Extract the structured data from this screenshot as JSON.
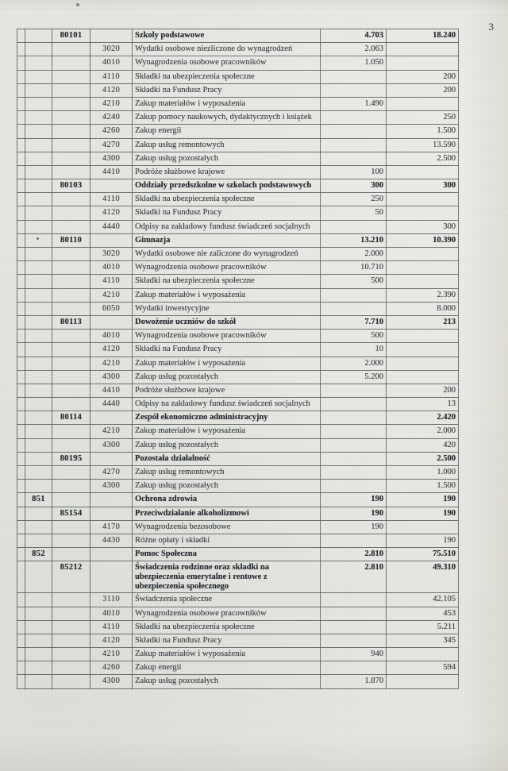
{
  "page": {
    "number": "3"
  },
  "colors": {
    "paper": "#e5e6e1",
    "ink": "#3a4045",
    "bold_ink": "#262b30",
    "grid_line": "#525a53"
  },
  "table": {
    "rows": [
      {
        "rozdzial": "80101",
        "description": "Szkoly podstawowe",
        "value1": "4.703",
        "value2": "18.240",
        "bold": true
      },
      {
        "paragraf": "3020",
        "description": "Wydatki osobowe niezliczone do wynagrodzeń",
        "value1": "2.063"
      },
      {
        "paragraf": "4010",
        "description": "Wynagrodzenia osobowe pracowników",
        "value1": "1.050"
      },
      {
        "paragraf": "4110",
        "description": "Składki na ubezpieczenia społeczne",
        "value2": "200"
      },
      {
        "paragraf": "4120",
        "description": "Składki na Fundusz Pracy",
        "value2": "200"
      },
      {
        "paragraf": "4210",
        "description": "Zakup materiałów i wyposażenia",
        "value1": "1.490"
      },
      {
        "paragraf": "4240",
        "description": "Zakup pomocy naukowych, dydaktycznych i książek",
        "value2": "250"
      },
      {
        "paragraf": "4260",
        "description": "Zakup energii",
        "value2": "1.500"
      },
      {
        "paragraf": "4270",
        "description": "Zakup usług remontowych",
        "value2": "13.590"
      },
      {
        "paragraf": "4300",
        "description": "Zakup usług pozostałych",
        "value2": "2.500"
      },
      {
        "paragraf": "4410",
        "description": "Podróże służbowe krajowe",
        "value1": "100"
      },
      {
        "rozdzial": "80103",
        "description": "Oddziały przedszkolne w szkolach podstawowych",
        "value1": "300",
        "value2": "300",
        "bold": true
      },
      {
        "paragraf": "4110",
        "description": "Składki na ubezpieczenia społeczne",
        "value1": "250"
      },
      {
        "paragraf": "4120",
        "description": "Składki na Fundusz Pracy",
        "value1": "50"
      },
      {
        "paragraf": "4440",
        "description": "Odpisy na zakładowy fundusz świadczeń socjalnych",
        "value2": "300"
      },
      {
        "rozdzial": "80110",
        "description": "Gimnazja",
        "value1": "13.210",
        "value2": "10.390",
        "bold": true
      },
      {
        "paragraf": "3020",
        "description": "Wydatki osobowe nie zaliczone do wynagrodzeń",
        "value1": "2.000"
      },
      {
        "paragraf": "4010",
        "description": "Wynagrodzenia osobowe pracowników",
        "value1": "10.710"
      },
      {
        "paragraf": "4110",
        "description": "Składki na ubezpieczenia społeczne",
        "value1": "500"
      },
      {
        "paragraf": "4210",
        "description": "Zakup materiałów i wyposażenia",
        "value2": "2.390"
      },
      {
        "paragraf": "6050",
        "description": "Wydatki inwestycyjne",
        "value2": "8.000"
      },
      {
        "rozdzial": "80113",
        "description": "Dowożenie uczniów do szkół",
        "value1": "7.710",
        "value2": "213",
        "bold": true
      },
      {
        "paragraf": "4010",
        "description": "Wynagrodzenia osobowe pracowników",
        "value1": "500"
      },
      {
        "paragraf": "4120",
        "description": "Składki na Fundusz Pracy",
        "value1": "10"
      },
      {
        "paragraf": "4210",
        "description": "Zakup materiałów i wyposażenia",
        "value1": "2.000"
      },
      {
        "paragraf": "4300",
        "description": "Zakup usług pozostałych",
        "value1": "5.200"
      },
      {
        "paragraf": "4410",
        "description": "Podróże służbowe krajowe",
        "value2": "200"
      },
      {
        "paragraf": "4440",
        "description": "Odpisy na zakładowy fundusz świadczeń socjalnych",
        "value2": "13"
      },
      {
        "rozdzial": "80114",
        "description": "Zespół ekonomiczno administracyjny",
        "value2": "2.420",
        "bold": true
      },
      {
        "paragraf": "4210",
        "description": "Zakup materiałów i wyposażenia",
        "value2": "2.000"
      },
      {
        "paragraf": "4300",
        "description": "Zakup usług pozostałych",
        "value2": "420"
      },
      {
        "rozdzial": "80195",
        "description": "Pozostała działalność",
        "value2": "2.500",
        "bold": true
      },
      {
        "paragraf": "4270",
        "description": "Zakup usług remontowych",
        "value2": "1.000"
      },
      {
        "paragraf": "4300",
        "description": "Zakup usług pozostałych",
        "value2": "1.500"
      },
      {
        "dzial": "851",
        "description": "Ochrona zdrowia",
        "value1": "190",
        "value2": "190",
        "bold": true
      },
      {
        "rozdzial": "85154",
        "description": "Przeciwdziałanie alkoholizmowi",
        "value1": "190",
        "value2": "190",
        "bold": true
      },
      {
        "paragraf": "4170",
        "description": "Wynagrodzenia bezosobowe",
        "value1": "190"
      },
      {
        "paragraf": "4430",
        "description": "Różne opłaty i składki",
        "value2": "190"
      },
      {
        "dzial": "852",
        "description": "Pomoc Społeczna",
        "value1": "2.810",
        "value2": "75.510",
        "bold": true
      },
      {
        "rozdzial": "85212",
        "description": "Świadczenia rodzinne oraz składki na ubezpieczenia emerytalne i rentowe z ubezpieczenia społecznego",
        "value1": "2.810",
        "value2": "49.310",
        "bold": true
      },
      {
        "paragraf": "3110",
        "description": "Świadczenia społeczne",
        "value2": "42.105"
      },
      {
        "paragraf": "4010",
        "description": "Wynagrodzenia osobowe pracowników",
        "value2": "453"
      },
      {
        "paragraf": "4110",
        "description": "Składki na ubezpieczenia społeczne",
        "value2": "5.211"
      },
      {
        "paragraf": "4120",
        "description": "Składki na Fundusz Pracy",
        "value2": "345"
      },
      {
        "paragraf": "4210",
        "description": "Zakup materiałów i wyposażenia",
        "value1": "940"
      },
      {
        "paragraf": "4260",
        "description": "Zakup energii",
        "value2": "594"
      },
      {
        "paragraf": "4300",
        "description": "Zakup usług pozostałych",
        "value1": "1.870"
      }
    ]
  }
}
